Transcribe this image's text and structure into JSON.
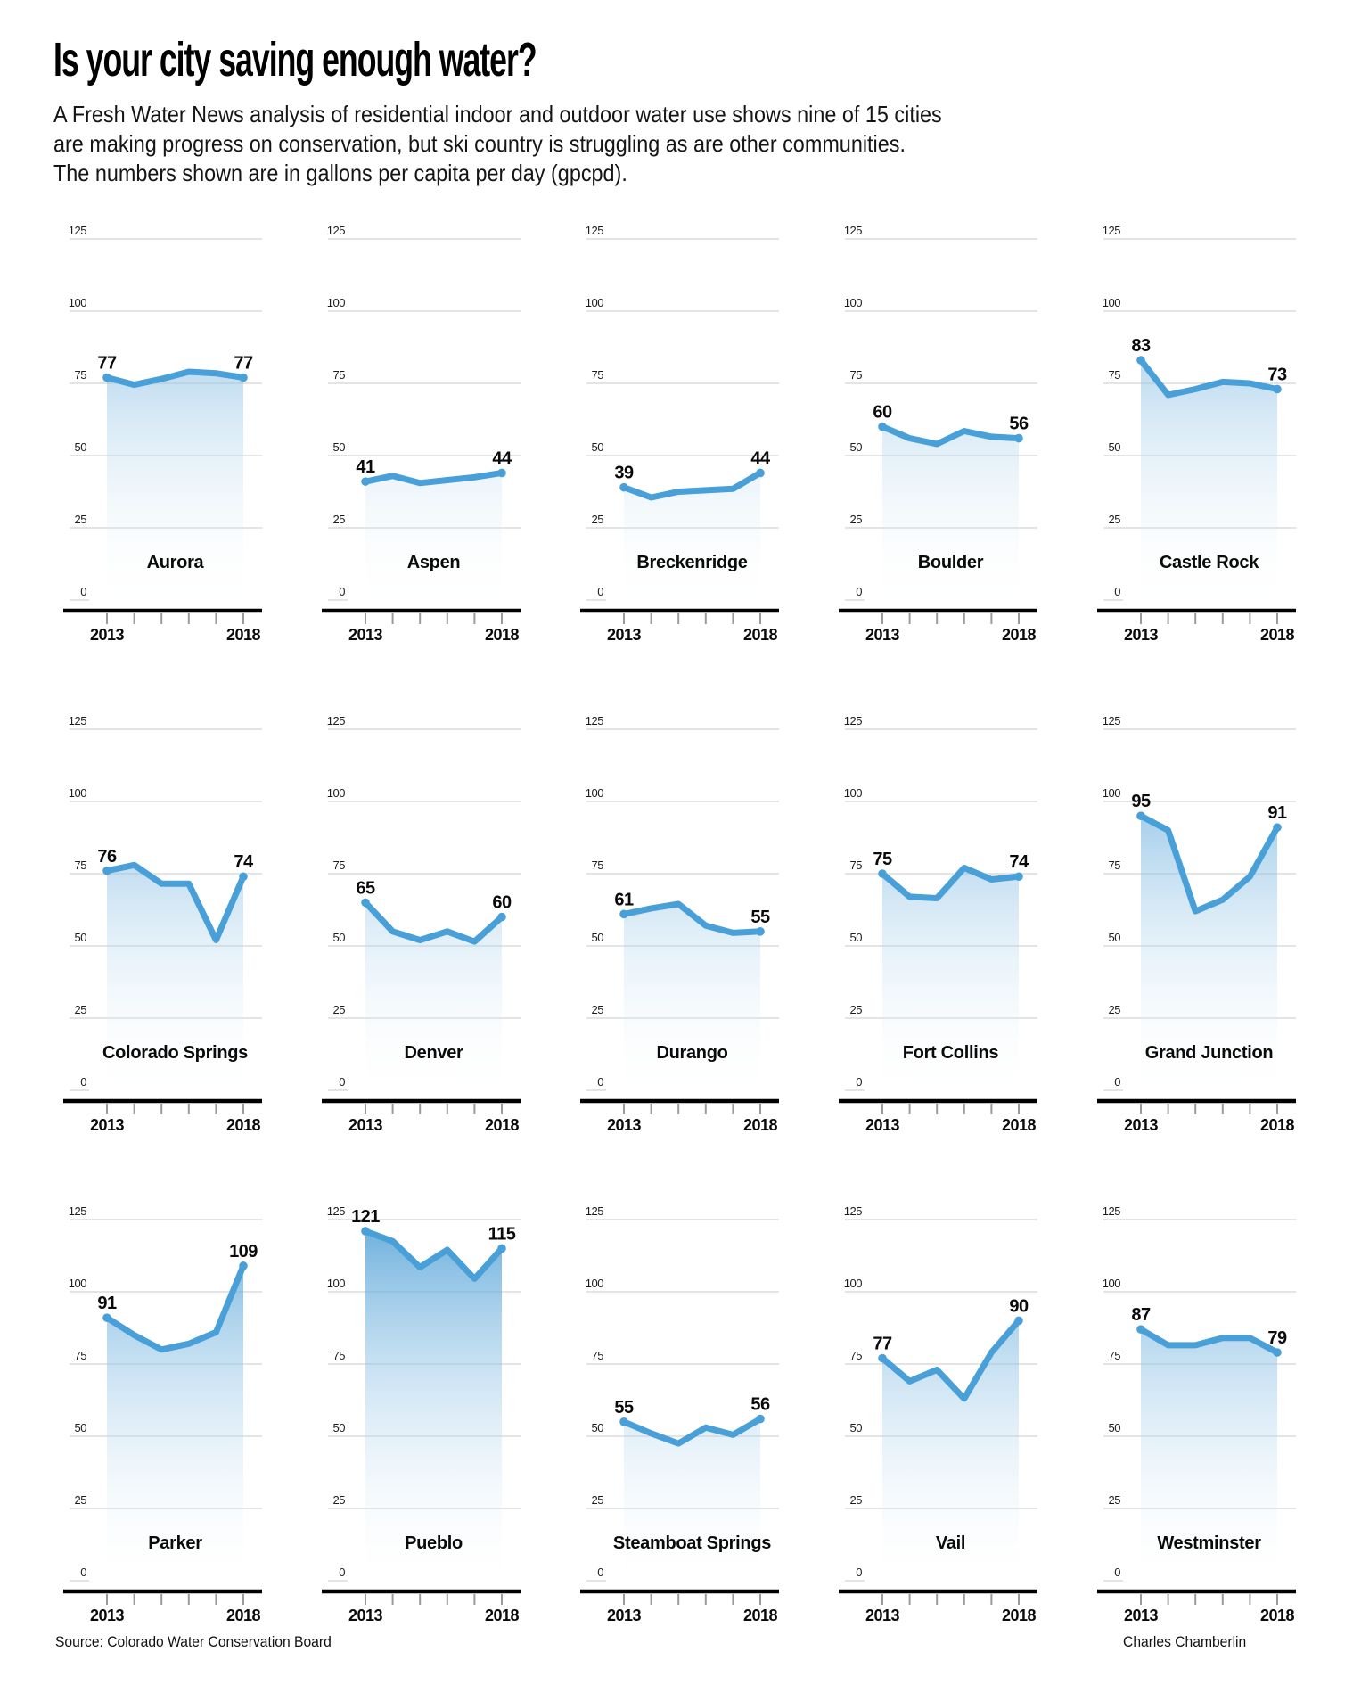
{
  "header": {
    "title": "Is your city saving enough water?",
    "subtitle": "A Fresh Water News analysis of residential indoor and outdoor water use shows nine of 15 cities\nare making progress on conservation, but ski country is struggling as are other communities.\nThe numbers shown are in gallons per capita per day (gpcpd)."
  },
  "footer": {
    "source": "Source: Colorado Water Conservation Board",
    "credit": "Charles Chamberlin"
  },
  "colors": {
    "line": "#49A0D8",
    "fill_top": "#4E9FD6",
    "grid": "#C9C9C9",
    "axis": "#000000",
    "tick": "#9B9B9B"
  },
  "chart_data": {
    "type": "area",
    "x": [
      2013,
      2014,
      2015,
      2016,
      2017,
      2018
    ],
    "x_tick_labels": [
      "2013",
      "2018"
    ],
    "ylim": [
      0,
      125
    ],
    "y_ticks": [
      125,
      100,
      75,
      50,
      25,
      0
    ],
    "grid": true,
    "units": "gallons per capita per day (gpcpd)",
    "series": [
      {
        "name": "Aurora",
        "values": [
          77,
          74.5,
          76.5,
          79,
          78.5,
          77
        ],
        "start_label": "77",
        "end_label": "77"
      },
      {
        "name": "Aspen",
        "values": [
          41,
          43,
          40.5,
          41.5,
          42.5,
          44
        ],
        "start_label": "41",
        "end_label": "44"
      },
      {
        "name": "Breckenridge",
        "values": [
          39,
          35.5,
          37.5,
          38,
          38.5,
          44
        ],
        "start_label": "39",
        "end_label": "44"
      },
      {
        "name": "Boulder",
        "values": [
          60,
          56,
          54,
          58.5,
          56.5,
          56
        ],
        "start_label": "60",
        "end_label": "56"
      },
      {
        "name": "Castle Rock",
        "values": [
          83,
          71,
          73,
          75.5,
          75,
          73
        ],
        "start_label": "83",
        "end_label": "73"
      },
      {
        "name": "Colorado Springs",
        "values": [
          76,
          78,
          71.5,
          71.5,
          52,
          74
        ],
        "start_label": "76",
        "end_label": "74"
      },
      {
        "name": "Denver",
        "values": [
          65,
          55,
          52,
          55,
          51.5,
          60
        ],
        "start_label": "65",
        "end_label": "60"
      },
      {
        "name": "Durango",
        "values": [
          61,
          63,
          64.5,
          57,
          54.5,
          55
        ],
        "start_label": "61",
        "end_label": "55"
      },
      {
        "name": "Fort Collins",
        "values": [
          75,
          67,
          66.5,
          77,
          73,
          74
        ],
        "start_label": "75",
        "end_label": "74"
      },
      {
        "name": "Grand Junction",
        "values": [
          95,
          90,
          62,
          66,
          74,
          91
        ],
        "start_label": "95",
        "end_label": "91"
      },
      {
        "name": "Parker",
        "values": [
          91,
          85,
          80,
          82,
          86,
          109
        ],
        "start_label": "91",
        "end_label": "109"
      },
      {
        "name": "Pueblo",
        "values": [
          121,
          117.5,
          108.5,
          114.5,
          104.5,
          115
        ],
        "start_label": "121",
        "end_label": "115"
      },
      {
        "name": "Steamboat Springs",
        "values": [
          55,
          51,
          47.5,
          53,
          50.5,
          56
        ],
        "start_label": "55",
        "end_label": "56"
      },
      {
        "name": "Vail",
        "values": [
          77,
          69,
          73,
          63,
          79,
          90
        ],
        "start_label": "77",
        "end_label": "90"
      },
      {
        "name": "Westminster",
        "values": [
          87,
          81.5,
          81.5,
          84,
          84,
          79
        ],
        "start_label": "87",
        "end_label": "79"
      }
    ]
  }
}
